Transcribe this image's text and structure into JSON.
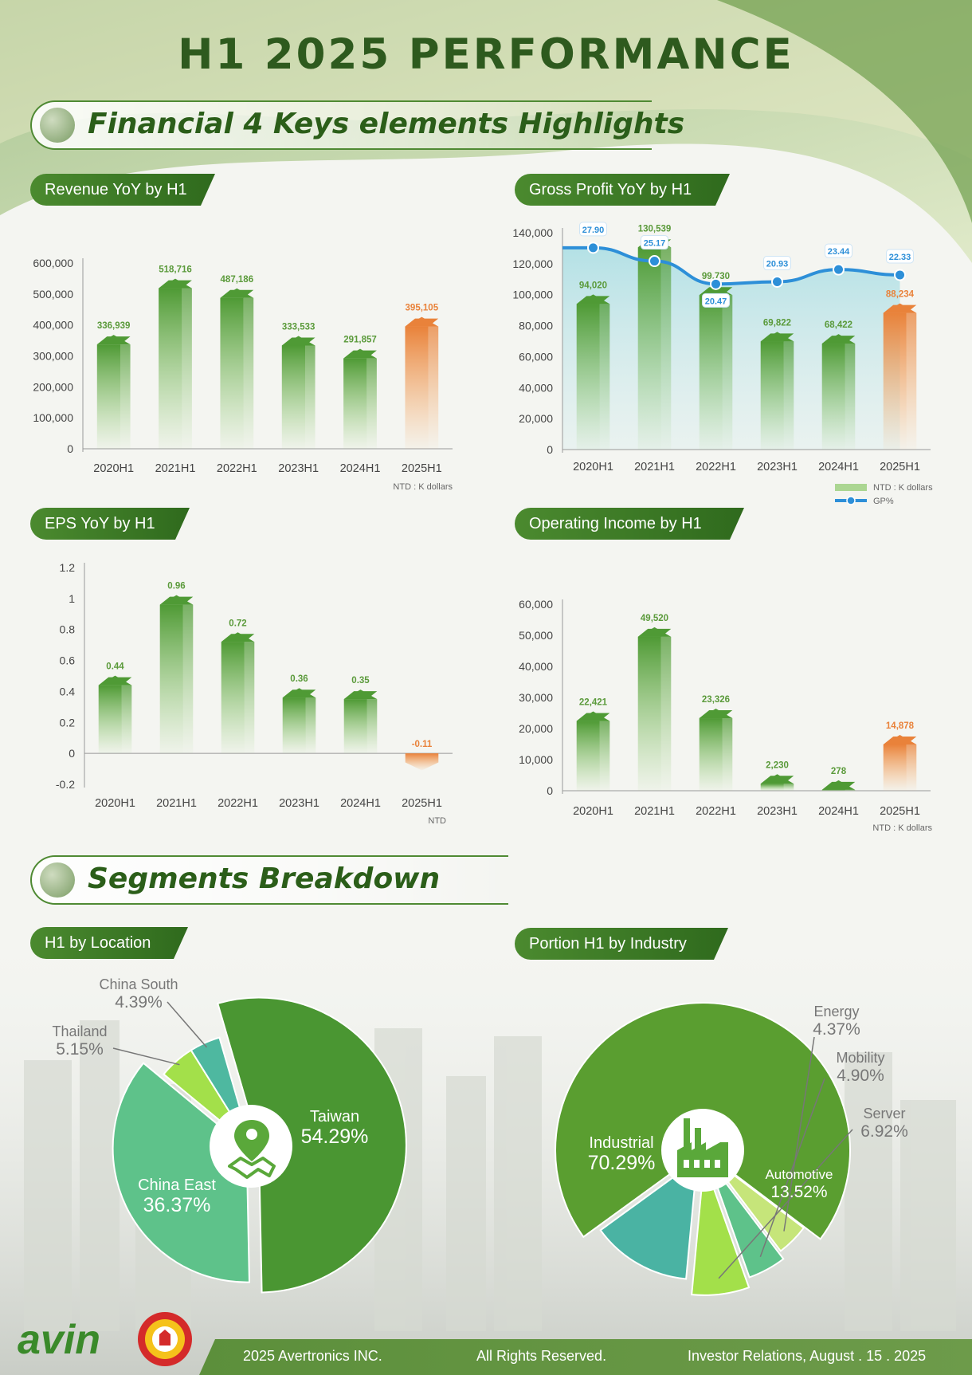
{
  "page_title": "H1 2025 PERFORMANCE",
  "section1_title": "Financial 4 Keys elements Highlights",
  "section2_title": "Segments Breakdown",
  "colors": {
    "green_dark": "#2e5a1e",
    "green_bar": "#6fab4c",
    "orange_bar": "#f39a4a",
    "gp_line": "#2d8fd8"
  },
  "chart_data": [
    {
      "id": "revenue",
      "type": "bar",
      "title": "Revenue YoY by H1",
      "categories": [
        "2020H1",
        "2021H1",
        "2022H1",
        "2023H1",
        "2024H1",
        "2025H1"
      ],
      "values": [
        336939,
        518716,
        487186,
        333533,
        291857,
        395105
      ],
      "value_labels": [
        "336,939",
        "518,716",
        "487,186",
        "333,533",
        "291,857",
        "395,105"
      ],
      "ylim": [
        0,
        600000
      ],
      "yticks": [
        0,
        100000,
        200000,
        300000,
        400000,
        500000,
        600000
      ],
      "ytick_labels": [
        "0",
        "100,000",
        "200,000",
        "300,000",
        "400,000",
        "500,000",
        "600,000"
      ],
      "unit_note": "NTD : K dollars",
      "grid": false
    },
    {
      "id": "gross_profit",
      "type": "bar",
      "title": "Gross Profit YoY by H1",
      "categories": [
        "2020H1",
        "2021H1",
        "2022H1",
        "2023H1",
        "2024H1",
        "2025H1"
      ],
      "values": [
        94020,
        130539,
        99730,
        69822,
        68422,
        88234
      ],
      "value_labels": [
        "94,020",
        "130,539",
        "99,730",
        "69,822",
        "68,422",
        "88,234"
      ],
      "gp_percent": [
        27.9,
        25.17,
        20.47,
        20.93,
        23.44,
        22.33
      ],
      "gp_labels": [
        "27.90",
        "25.17",
        "20.47",
        "20.93",
        "23.44",
        "22.33"
      ],
      "ylim": [
        0,
        140000
      ],
      "yticks": [
        0,
        20000,
        40000,
        60000,
        80000,
        100000,
        120000,
        140000
      ],
      "ytick_labels": [
        "0",
        "20,000",
        "40,000",
        "60,000",
        "80,000",
        "100,000",
        "120,000",
        "140,000"
      ],
      "legend": [
        {
          "label": "NTD : K dollars"
        },
        {
          "label": "GP%"
        }
      ],
      "legend_position": "bottom-right",
      "grid": false
    },
    {
      "id": "eps",
      "type": "bar",
      "title": "EPS YoY by H1",
      "categories": [
        "2020H1",
        "2021H1",
        "2022H1",
        "2023H1",
        "2024H1",
        "2025H1"
      ],
      "values": [
        0.44,
        0.96,
        0.72,
        0.36,
        0.35,
        -0.11
      ],
      "value_labels": [
        "0.44",
        "0.96",
        "0.72",
        "0.36",
        "0.35",
        "-0.11"
      ],
      "ylim": [
        -0.2,
        1.2
      ],
      "yticks": [
        -0.2,
        0,
        0.2,
        0.4,
        0.6,
        0.8,
        1,
        1.2
      ],
      "ytick_labels": [
        "-0.2",
        "0",
        "0.2",
        "0.4",
        "0.6",
        "0.8",
        "1",
        "1.2"
      ],
      "unit_note": "NTD",
      "grid": false
    },
    {
      "id": "op_income",
      "type": "bar",
      "title": "Operating Income by H1",
      "categories": [
        "2020H1",
        "2021H1",
        "2022H1",
        "2023H1",
        "2024H1",
        "2025H1"
      ],
      "values": [
        22421,
        49520,
        23326,
        2230,
        278,
        14878
      ],
      "value_labels": [
        "22,421",
        "49,520",
        "23,326",
        "2,230",
        "278",
        "14,878"
      ],
      "ylim": [
        0,
        60000
      ],
      "yticks": [
        0,
        10000,
        20000,
        30000,
        40000,
        50000,
        60000
      ],
      "ytick_labels": [
        "0",
        "10,000",
        "20,000",
        "30,000",
        "40,000",
        "50,000",
        "60,000"
      ],
      "unit_note": "NTD : K dollars",
      "grid": false
    },
    {
      "id": "location",
      "type": "pie",
      "title": "H1 by Location",
      "slices": [
        {
          "label": "Taiwan",
          "pct_label": "54.29%",
          "value": 54.29,
          "color": "#4a9632"
        },
        {
          "label": "China East",
          "pct_label": "36.37%",
          "value": 36.37,
          "color": "#5ec28a"
        },
        {
          "label": "Thailand",
          "pct_label": "5.15%",
          "value": 5.15,
          "color": "#a3e04a"
        },
        {
          "label": "China South",
          "pct_label": "4.39%",
          "value": 4.39,
          "color": "#4eb8a0"
        }
      ]
    },
    {
      "id": "industry",
      "type": "pie",
      "title": "Portion H1 by Industry",
      "slices": [
        {
          "label": "Industrial",
          "pct_label": "70.29%",
          "value": 70.29,
          "color": "#5a9e30"
        },
        {
          "label": "Energy",
          "pct_label": "4.37%",
          "value": 4.37,
          "color": "#c6e57a"
        },
        {
          "label": "Mobility",
          "pct_label": "4.90%",
          "value": 4.9,
          "color": "#5ec28a"
        },
        {
          "label": "Server",
          "pct_label": "6.92%",
          "value": 6.92,
          "color": "#a3e04a"
        },
        {
          "label": "Automotive",
          "pct_label": "13.52%",
          "value": 13.52,
          "color": "#4ab3a3"
        }
      ]
    }
  ],
  "footer": {
    "company": "2025 Avertronics INC.",
    "rights": "All Rights Reserved.",
    "ir": "Investor Relations, August . 15 . 2025"
  },
  "logo_text": "avin"
}
